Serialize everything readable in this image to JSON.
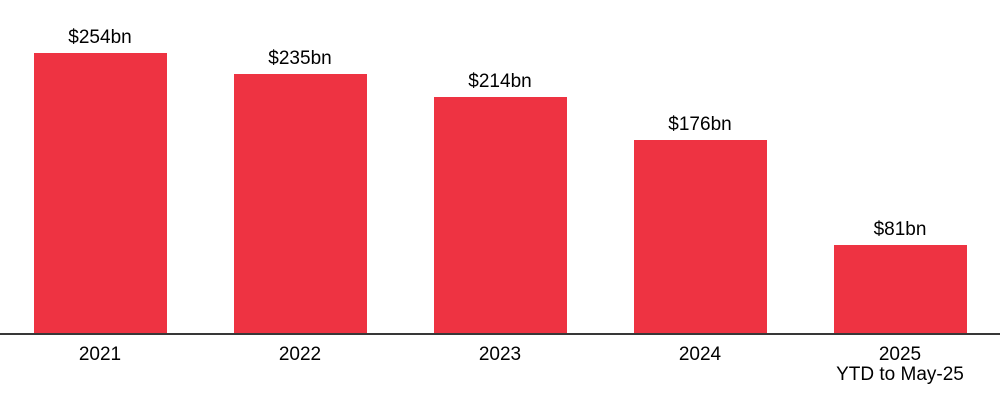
{
  "chart_data": {
    "type": "bar",
    "categories": [
      "2021",
      "2022",
      "2023",
      "2024",
      "2025"
    ],
    "values": [
      254,
      235,
      214,
      176,
      81
    ],
    "value_labels": [
      "$254bn",
      "$235bn",
      "$214bn",
      "$176bn",
      "$81bn"
    ],
    "x_sublabels": [
      "",
      "",
      "",
      "",
      "YTD to May-25"
    ],
    "title": "",
    "xlabel": "",
    "ylabel": "",
    "ylim": [
      0,
      300
    ],
    "grid": false,
    "legend": false,
    "bar_color": "#EE3342",
    "axis_line_color": "#383838",
    "label_color": "#000000"
  }
}
